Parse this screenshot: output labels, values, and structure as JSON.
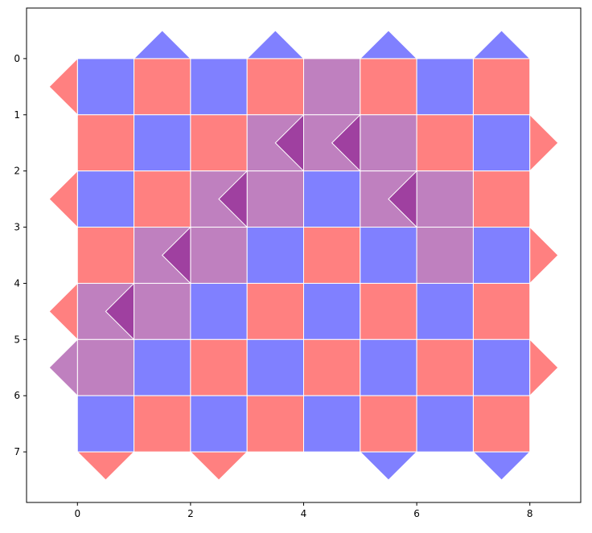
{
  "chart_data": {
    "type": "tiles",
    "xlim": [
      -0.9,
      8.9
    ],
    "ylim": [
      7.9,
      -0.9
    ],
    "xticks": [
      0,
      2,
      4,
      6,
      8
    ],
    "yticks": [
      0,
      1,
      2,
      3,
      4,
      5,
      6,
      7
    ],
    "palette": {
      "B": "#8080ff",
      "R": "#ff8080",
      "P": "#bf80bf",
      "D": "#9f40a0"
    },
    "cells": [
      [
        "B",
        "R",
        "B",
        "R",
        "P",
        "R",
        "B",
        "R"
      ],
      [
        "R",
        "B",
        "R",
        "P",
        "P",
        "P",
        "R",
        "B"
      ],
      [
        "B",
        "R",
        "P",
        "P",
        "B",
        "P",
        "P",
        "R"
      ],
      [
        "R",
        "P",
        "P",
        "B",
        "R",
        "B",
        "P",
        "B"
      ],
      [
        "P",
        "P",
        "B",
        "R",
        "B",
        "R",
        "B",
        "R"
      ],
      [
        "P",
        "B",
        "R",
        "B",
        "R",
        "B",
        "R",
        "B"
      ],
      [
        "B",
        "R",
        "B",
        "R",
        "B",
        "R",
        "B",
        "R"
      ]
    ],
    "triangles": [
      {
        "tip": [
          1.5,
          -0.5
        ],
        "dir": "up",
        "color": "B"
      },
      {
        "tip": [
          3.5,
          -0.5
        ],
        "dir": "up",
        "color": "B"
      },
      {
        "tip": [
          5.5,
          -0.5
        ],
        "dir": "up",
        "color": "B"
      },
      {
        "tip": [
          7.5,
          -0.5
        ],
        "dir": "up",
        "color": "B"
      },
      {
        "tip": [
          0.5,
          7.5
        ],
        "dir": "down",
        "color": "R"
      },
      {
        "tip": [
          2.5,
          7.5
        ],
        "dir": "down",
        "color": "R"
      },
      {
        "tip": [
          5.5,
          7.5
        ],
        "dir": "down",
        "color": "B"
      },
      {
        "tip": [
          7.5,
          7.5
        ],
        "dir": "down",
        "color": "B"
      },
      {
        "tip": [
          -0.5,
          0.5
        ],
        "dir": "left",
        "color": "R"
      },
      {
        "tip": [
          -0.5,
          2.5
        ],
        "dir": "left",
        "color": "R"
      },
      {
        "tip": [
          -0.5,
          4.5
        ],
        "dir": "left",
        "color": "R"
      },
      {
        "tip": [
          -0.5,
          5.5
        ],
        "dir": "left",
        "color": "P"
      },
      {
        "tip": [
          8.5,
          1.5
        ],
        "dir": "right",
        "color": "R"
      },
      {
        "tip": [
          8.5,
          3.5
        ],
        "dir": "right",
        "color": "R"
      },
      {
        "tip": [
          8.5,
          5.5
        ],
        "dir": "right",
        "color": "R"
      },
      {
        "tip": [
          3.5,
          1.5
        ],
        "dir": "left",
        "color": "D"
      },
      {
        "tip": [
          4.5,
          1.5
        ],
        "dir": "left",
        "color": "D"
      },
      {
        "tip": [
          2.5,
          2.5
        ],
        "dir": "left",
        "color": "D"
      },
      {
        "tip": [
          5.5,
          2.5
        ],
        "dir": "left",
        "color": "D"
      },
      {
        "tip": [
          1.5,
          3.5
        ],
        "dir": "left",
        "color": "D"
      },
      {
        "tip": [
          0.5,
          4.5
        ],
        "dir": "left",
        "color": "D"
      }
    ]
  }
}
